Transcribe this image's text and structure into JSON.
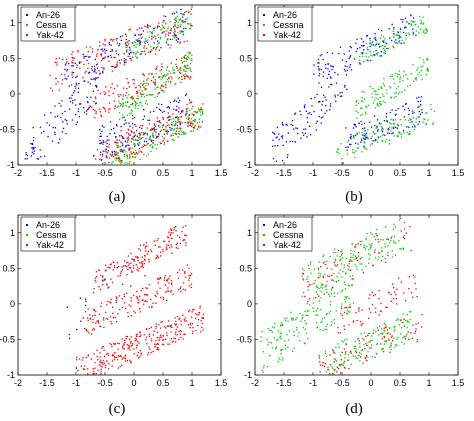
{
  "figure": {
    "captions": [
      "(a)",
      "(b)",
      "(c)",
      "(d)"
    ]
  },
  "legend_labels": [
    "An-26",
    "Cessna",
    "Yak-42"
  ],
  "series_colors": {
    "An-26": "#0000ff",
    "Cessna": "#00cc00",
    "Yak-42": "#ff0000"
  },
  "chart_data": [
    {
      "type": "scatter",
      "panel": "(a)",
      "xlim": [
        -2,
        1.5
      ],
      "ylim": [
        -1,
        1.25
      ],
      "xticks": [
        -2,
        -1.5,
        -1,
        -0.5,
        0,
        0.5,
        1,
        1.5
      ],
      "yticks": [
        -1,
        -0.5,
        0,
        0.5,
        1
      ],
      "legend_position": "top-left",
      "legend_entries": [
        "An-26",
        "Cessna",
        "Yak-42"
      ],
      "series": [
        {
          "name": "An-26",
          "color": "#0000ff",
          "clusters": [
            {
              "x_range": [
                -1.2,
                0.9
              ],
              "y_at_xmin": 0.25,
              "y_at_xmax": 1.0,
              "spread": 0.22,
              "count": 150
            },
            {
              "x_range": [
                -1.9,
                -0.6
              ],
              "y_at_xmin": -0.9,
              "y_at_xmax": 0.2,
              "spread": 0.3,
              "count": 120
            },
            {
              "x_range": [
                -0.6,
                1.0
              ],
              "y_at_xmin": -0.7,
              "y_at_xmax": -0.2,
              "spread": 0.25,
              "count": 160
            }
          ]
        },
        {
          "name": "Cessna",
          "color": "#00cc00",
          "clusters": [
            {
              "x_range": [
                -0.2,
                1.0
              ],
              "y_at_xmin": 0.55,
              "y_at_xmax": 1.05,
              "spread": 0.15,
              "count": 110
            },
            {
              "x_range": [
                -0.3,
                1.0
              ],
              "y_at_xmin": -0.25,
              "y_at_xmax": 0.45,
              "spread": 0.18,
              "count": 160
            },
            {
              "x_range": [
                -0.4,
                1.2
              ],
              "y_at_xmin": -0.95,
              "y_at_xmax": -0.3,
              "spread": 0.18,
              "count": 200
            }
          ]
        },
        {
          "name": "Yak-42",
          "color": "#ff0000",
          "clusters": [
            {
              "x_range": [
                -1.5,
                1.0
              ],
              "y_at_xmin": 0.2,
              "y_at_xmax": 1.0,
              "spread": 0.25,
              "count": 180
            },
            {
              "x_range": [
                -0.8,
                1.0
              ],
              "y_at_xmin": -0.2,
              "y_at_xmax": 0.4,
              "spread": 0.2,
              "count": 140
            },
            {
              "x_range": [
                -0.7,
                1.2
              ],
              "y_at_xmin": -0.9,
              "y_at_xmax": -0.25,
              "spread": 0.22,
              "count": 200
            }
          ]
        }
      ]
    },
    {
      "type": "scatter",
      "panel": "(b)",
      "xlim": [
        -2,
        1.5
      ],
      "ylim": [
        -1,
        1.25
      ],
      "xticks": [
        -2,
        -1.5,
        -1,
        -0.5,
        0,
        0.5,
        1,
        1.5
      ],
      "yticks": [
        -1,
        -0.5,
        0,
        0.5,
        1
      ],
      "legend_position": "top-left",
      "legend_entries": [
        "An-26",
        "Cessna",
        "Yak-42"
      ],
      "series": [
        {
          "name": "An-26",
          "color": "#0000ff",
          "clusters": [
            {
              "x_range": [
                -1.0,
                0.8
              ],
              "y_at_xmin": 0.3,
              "y_at_xmax": 0.95,
              "spread": 0.2,
              "count": 130
            },
            {
              "x_range": [
                -1.7,
                -0.4
              ],
              "y_at_xmin": -0.8,
              "y_at_xmax": 0.15,
              "spread": 0.28,
              "count": 110
            },
            {
              "x_range": [
                -0.5,
                0.9
              ],
              "y_at_xmin": -0.7,
              "y_at_xmax": -0.2,
              "spread": 0.2,
              "count": 120
            }
          ]
        },
        {
          "name": "Cessna",
          "color": "#00cc00",
          "clusters": [
            {
              "x_range": [
                -0.2,
                1.0
              ],
              "y_at_xmin": 0.55,
              "y_at_xmax": 1.0,
              "spread": 0.15,
              "count": 100
            },
            {
              "x_range": [
                -0.3,
                1.0
              ],
              "y_at_xmin": -0.2,
              "y_at_xmax": 0.4,
              "spread": 0.18,
              "count": 120
            },
            {
              "x_range": [
                -0.6,
                1.1
              ],
              "y_at_xmin": -0.85,
              "y_at_xmax": -0.25,
              "spread": 0.18,
              "count": 120
            }
          ]
        }
      ]
    },
    {
      "type": "scatter",
      "panel": "(c)",
      "xlim": [
        -2,
        1.5
      ],
      "ylim": [
        -1,
        1.25
      ],
      "xticks": [
        -2,
        -1.5,
        -1,
        -0.5,
        0,
        0.5,
        1,
        1.5
      ],
      "yticks": [
        -1,
        -0.5,
        0,
        0.5,
        1
      ],
      "legend_position": "top-left",
      "legend_entries": [
        "An-26",
        "Cessna",
        "Yak-42"
      ],
      "series": [
        {
          "name": "An-26",
          "color": "#0000ff",
          "clusters": [
            {
              "x_range": [
                -1.2,
                0.2
              ],
              "y_at_xmin": -0.3,
              "y_at_xmax": 0.6,
              "spread": 0.25,
              "count": 25
            }
          ]
        },
        {
          "name": "Yak-42",
          "color": "#ff0000",
          "clusters": [
            {
              "x_range": [
                -0.7,
                0.9
              ],
              "y_at_xmin": 0.3,
              "y_at_xmax": 1.0,
              "spread": 0.18,
              "count": 160
            },
            {
              "x_range": [
                -0.9,
                1.0
              ],
              "y_at_xmin": -0.3,
              "y_at_xmax": 0.4,
              "spread": 0.2,
              "count": 170
            },
            {
              "x_range": [
                -1.0,
                1.2
              ],
              "y_at_xmin": -0.95,
              "y_at_xmax": -0.2,
              "spread": 0.2,
              "count": 300
            }
          ]
        }
      ]
    },
    {
      "type": "scatter",
      "panel": "(d)",
      "xlim": [
        -2,
        1.5
      ],
      "ylim": [
        -1,
        1.25
      ],
      "xticks": [
        -2,
        -1.5,
        -1,
        -0.5,
        0,
        0.5,
        1,
        1.5
      ],
      "yticks": [
        -1,
        -0.5,
        0,
        0.5,
        1
      ],
      "legend_position": "top-left",
      "legend_entries": [
        "An-26",
        "Cessna",
        "Yak-42"
      ],
      "series": [
        {
          "name": "Cessna",
          "color": "#00cc00",
          "clusters": [
            {
              "x_range": [
                -1.2,
                0.6
              ],
              "y_at_xmin": 0.3,
              "y_at_xmax": 1.0,
              "spread": 0.25,
              "count": 160
            },
            {
              "x_range": [
                -1.9,
                -0.3
              ],
              "y_at_xmin": -0.7,
              "y_at_xmax": 0.2,
              "spread": 0.3,
              "count": 180
            },
            {
              "x_range": [
                -0.8,
                0.7
              ],
              "y_at_xmin": -0.85,
              "y_at_xmax": -0.3,
              "spread": 0.22,
              "count": 150
            }
          ]
        },
        {
          "name": "Yak-42",
          "color": "#ff0000",
          "clusters": [
            {
              "x_range": [
                -1.2,
                0.7
              ],
              "y_at_xmin": 0.2,
              "y_at_xmax": 1.0,
              "spread": 0.25,
              "count": 70
            },
            {
              "x_range": [
                -0.6,
                0.8
              ],
              "y_at_xmin": -0.3,
              "y_at_xmax": 0.3,
              "spread": 0.2,
              "count": 70
            },
            {
              "x_range": [
                -0.9,
                0.9
              ],
              "y_at_xmin": -0.9,
              "y_at_xmax": -0.3,
              "spread": 0.2,
              "count": 90
            }
          ]
        }
      ]
    }
  ]
}
